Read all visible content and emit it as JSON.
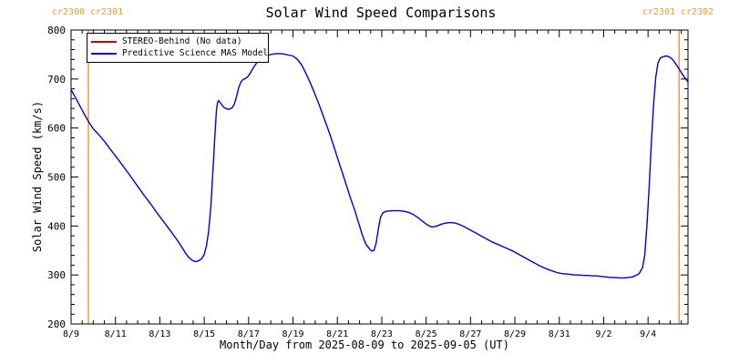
{
  "header": {
    "title": "Solar Wind Speed Comparisons"
  },
  "colors": {
    "background": "#ffffff",
    "frame": "#000000",
    "text": "#000000",
    "cr_line": "#ef9b2d",
    "stereo_red": "#c00000",
    "mas_blue": "#0000d0"
  },
  "chart_data": {
    "type": "line",
    "title": "Solar Wind Speed Comparisons",
    "xlabel": "Month/Day from 2025-08-09 to 2025-09-05 (UT)",
    "ylabel": "Solar Wind Speed (km/s)",
    "ylim": [
      200,
      800
    ],
    "y_ticks": [
      200,
      300,
      400,
      500,
      600,
      700,
      800
    ],
    "y_minor_step": 20,
    "x_range_days": [
      0,
      27.8
    ],
    "x_tick_days": [
      0,
      2,
      4,
      6,
      8,
      10,
      12,
      14,
      16,
      18,
      20,
      22,
      24,
      26
    ],
    "x_tick_labels": [
      "8/9",
      "8/11",
      "8/13",
      "8/15",
      "8/17",
      "8/19",
      "8/21",
      "8/23",
      "8/25",
      "8/27",
      "8/29",
      "8/31",
      "9/2",
      "9/4"
    ],
    "x_minor_step": 0.5,
    "grid": false,
    "legend_position": "top-left",
    "cr_boundaries": [
      {
        "day": 0.78,
        "labels": "cr2300 cr2301"
      },
      {
        "day": 27.4,
        "labels": "cr2301 cr2302"
      }
    ],
    "series": [
      {
        "name": "STEREO-Behind (No data)",
        "color": "#c00000",
        "points": []
      },
      {
        "name": "Predictive Science MAS Model",
        "color": "#0000d0",
        "points": [
          [
            0,
            678
          ],
          [
            0.2,
            662
          ],
          [
            0.4,
            645
          ],
          [
            0.6,
            628
          ],
          [
            0.8,
            612
          ],
          [
            1,
            598
          ],
          [
            1.2,
            589
          ],
          [
            1.5,
            573
          ],
          [
            1.8,
            555
          ],
          [
            2.1,
            537
          ],
          [
            2.4,
            519
          ],
          [
            2.7,
            500
          ],
          [
            3,
            481
          ],
          [
            3.3,
            462
          ],
          [
            3.6,
            444
          ],
          [
            3.9,
            425
          ],
          [
            4.2,
            407
          ],
          [
            4.5,
            389
          ],
          [
            4.8,
            370
          ],
          [
            5,
            356
          ],
          [
            5.15,
            345
          ],
          [
            5.3,
            336
          ],
          [
            5.45,
            330
          ],
          [
            5.6,
            327
          ],
          [
            5.75,
            329
          ],
          [
            5.9,
            334
          ],
          [
            6,
            342
          ],
          [
            6.1,
            360
          ],
          [
            6.2,
            390
          ],
          [
            6.3,
            440
          ],
          [
            6.4,
            520
          ],
          [
            6.5,
            600
          ],
          [
            6.55,
            635
          ],
          [
            6.6,
            652
          ],
          [
            6.65,
            656
          ],
          [
            6.75,
            650
          ],
          [
            6.85,
            644
          ],
          [
            6.95,
            640
          ],
          [
            7.1,
            638
          ],
          [
            7.25,
            641
          ],
          [
            7.35,
            648
          ],
          [
            7.45,
            663
          ],
          [
            7.55,
            682
          ],
          [
            7.65,
            694
          ],
          [
            7.75,
            699
          ],
          [
            7.85,
            701
          ],
          [
            7.95,
            704
          ],
          [
            8.05,
            710
          ],
          [
            8.2,
            722
          ],
          [
            8.35,
            732
          ],
          [
            8.5,
            740
          ],
          [
            8.7,
            746
          ],
          [
            8.9,
            749
          ],
          [
            9.1,
            751
          ],
          [
            9.35,
            752
          ],
          [
            9.6,
            751
          ],
          [
            9.8,
            749
          ],
          [
            10,
            747
          ],
          [
            10.2,
            740
          ],
          [
            10.4,
            728
          ],
          [
            10.6,
            710
          ],
          [
            10.8,
            690
          ],
          [
            11,
            668
          ],
          [
            11.2,
            645
          ],
          [
            11.4,
            620
          ],
          [
            11.6,
            595
          ],
          [
            11.8,
            568
          ],
          [
            12,
            540
          ],
          [
            12.2,
            512
          ],
          [
            12.4,
            484
          ],
          [
            12.6,
            456
          ],
          [
            12.8,
            430
          ],
          [
            12.9,
            415
          ],
          [
            13,
            400
          ],
          [
            13.1,
            385
          ],
          [
            13.2,
            372
          ],
          [
            13.3,
            362
          ],
          [
            13.45,
            353
          ],
          [
            13.55,
            349
          ],
          [
            13.65,
            350
          ],
          [
            13.75,
            365
          ],
          [
            13.85,
            395
          ],
          [
            13.95,
            418
          ],
          [
            14.05,
            427
          ],
          [
            14.2,
            430
          ],
          [
            14.5,
            431
          ],
          [
            14.8,
            431
          ],
          [
            15,
            430
          ],
          [
            15.2,
            428
          ],
          [
            15.4,
            424
          ],
          [
            15.6,
            418
          ],
          [
            15.8,
            411
          ],
          [
            16,
            404
          ],
          [
            16.1,
            401
          ],
          [
            16.25,
            398
          ],
          [
            16.4,
            399
          ],
          [
            16.55,
            401
          ],
          [
            16.7,
            404
          ],
          [
            16.9,
            406
          ],
          [
            17.1,
            407
          ],
          [
            17.3,
            406
          ],
          [
            17.5,
            403
          ],
          [
            17.7,
            399
          ],
          [
            17.9,
            394
          ],
          [
            18.1,
            389
          ],
          [
            18.3,
            384
          ],
          [
            18.5,
            379
          ],
          [
            18.7,
            374
          ],
          [
            18.9,
            369
          ],
          [
            19.1,
            365
          ],
          [
            19.3,
            361
          ],
          [
            19.5,
            357
          ],
          [
            19.7,
            353
          ],
          [
            19.9,
            349
          ],
          [
            20.1,
            344
          ],
          [
            20.3,
            339
          ],
          [
            20.5,
            334
          ],
          [
            20.7,
            329
          ],
          [
            20.9,
            324
          ],
          [
            21.1,
            319
          ],
          [
            21.3,
            315
          ],
          [
            21.5,
            311
          ],
          [
            21.7,
            308
          ],
          [
            21.9,
            305
          ],
          [
            22.1,
            303
          ],
          [
            22.3,
            302
          ],
          [
            22.5,
            301
          ],
          [
            22.7,
            300
          ],
          [
            22.9,
            300
          ],
          [
            23.1,
            299
          ],
          [
            23.3,
            299
          ],
          [
            23.5,
            298
          ],
          [
            23.7,
            298
          ],
          [
            23.9,
            297
          ],
          [
            24.1,
            296
          ],
          [
            24.3,
            295
          ],
          [
            24.5,
            295
          ],
          [
            24.7,
            294
          ],
          [
            24.9,
            294
          ],
          [
            25.1,
            295
          ],
          [
            25.3,
            296
          ],
          [
            25.45,
            299
          ],
          [
            25.6,
            303
          ],
          [
            25.75,
            315
          ],
          [
            25.85,
            340
          ],
          [
            25.95,
            400
          ],
          [
            26.05,
            480
          ],
          [
            26.15,
            570
          ],
          [
            26.25,
            650
          ],
          [
            26.35,
            705
          ],
          [
            26.45,
            733
          ],
          [
            26.55,
            743
          ],
          [
            26.7,
            746
          ],
          [
            26.85,
            747
          ],
          [
            27,
            744
          ],
          [
            27.1,
            740
          ],
          [
            27.2,
            734
          ],
          [
            27.35,
            724
          ],
          [
            27.5,
            713
          ],
          [
            27.65,
            703
          ],
          [
            27.8,
            694
          ]
        ]
      }
    ]
  }
}
